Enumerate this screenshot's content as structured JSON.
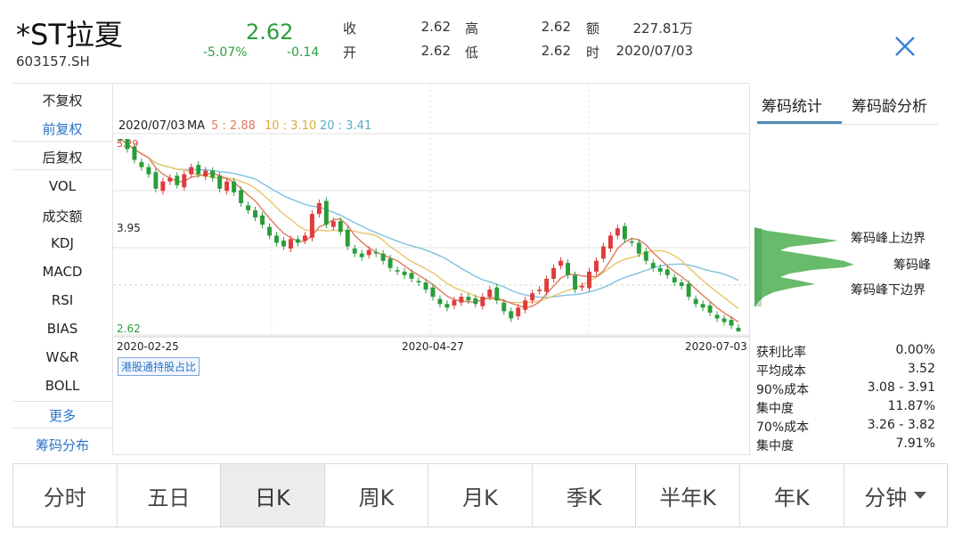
{
  "header": {
    "name": "*ST拉夏",
    "code": "603157.SH",
    "price": "2.62",
    "pct_change": "-5.07%",
    "change": "-0.14",
    "quotes": [
      {
        "label": "收",
        "value": "2.62"
      },
      {
        "label": "开",
        "value": "2.62"
      },
      {
        "label": "高",
        "value": "2.62"
      },
      {
        "label": "低",
        "value": "2.62"
      },
      {
        "label": "额",
        "value": "227.81万"
      },
      {
        "label": "时",
        "value": "2020/07/03"
      }
    ],
    "close_icon": "close-x-icon"
  },
  "left_menu": [
    {
      "label": "不复权",
      "style": "normal"
    },
    {
      "label": "前复权",
      "style": "blue"
    },
    {
      "label": "后复权",
      "style": "normal"
    },
    {
      "label": "VOL",
      "style": "normal"
    },
    {
      "label": "成交额",
      "style": "normal"
    },
    {
      "label": "KDJ",
      "style": "normal"
    },
    {
      "label": "MACD",
      "style": "normal"
    },
    {
      "label": "RSI",
      "style": "normal"
    },
    {
      "label": "BIAS",
      "style": "normal"
    },
    {
      "label": "W&R",
      "style": "normal"
    },
    {
      "label": "BOLL",
      "style": "normal"
    },
    {
      "label": "更多",
      "style": "blue"
    },
    {
      "label": "筹码分布",
      "style": "blue"
    }
  ],
  "chart": {
    "info": {
      "date": "2020/07/03",
      "ma_label": "MA",
      "ma5": "5 : 2.88",
      "ma10": "10 : 3.10",
      "ma20": "20 : 3.41"
    },
    "y_max_label": "5.29",
    "y_mid_label": "3.95",
    "y_min_label": "2.62",
    "x_labels": [
      "2020-02-25",
      "2020-04-27",
      "2020-07-03"
    ],
    "badge": "港股通持股占比",
    "colors": {
      "up": "#e03b3b",
      "down": "#2a9d3b",
      "ma5": "#e07a5f",
      "ma10": "#e8c46a",
      "ma20": "#7fc1dc"
    }
  },
  "chart_data": {
    "type": "candlestick",
    "x_start": "2020-02-25",
    "x_end": "2020-07-03",
    "ylim": [
      2.62,
      5.29
    ],
    "closes": [
      5.29,
      5.15,
      5.0,
      4.9,
      4.8,
      4.6,
      4.7,
      4.75,
      4.65,
      4.8,
      4.9,
      4.8,
      4.85,
      4.75,
      4.6,
      4.7,
      4.55,
      4.4,
      4.3,
      4.2,
      4.1,
      3.95,
      3.85,
      3.8,
      3.9,
      3.85,
      3.95,
      4.25,
      4.4,
      4.1,
      4.15,
      4.0,
      3.8,
      3.7,
      3.65,
      3.75,
      3.7,
      3.6,
      3.5,
      3.45,
      3.4,
      3.35,
      3.3,
      3.2,
      3.1,
      3.0,
      2.95,
      3.05,
      3.1,
      3.05,
      3.0,
      3.1,
      3.2,
      3.05,
      2.9,
      2.8,
      2.95,
      3.05,
      3.15,
      3.2,
      3.35,
      3.5,
      3.6,
      3.4,
      3.2,
      3.25,
      3.45,
      3.6,
      3.8,
      3.95,
      4.05,
      3.9,
      3.85,
      3.7,
      3.6,
      3.5,
      3.45,
      3.4,
      3.3,
      3.25,
      3.1,
      3.0,
      2.95,
      2.88,
      2.8,
      2.75,
      2.7,
      2.62
    ],
    "ma_values": {
      "ma5": 2.88,
      "ma10": 3.1,
      "ma20": 3.41
    }
  },
  "right_panel": {
    "tabs": [
      {
        "label": "筹码统计",
        "active": true
      },
      {
        "label": "筹码龄分析",
        "active": false
      }
    ],
    "labels": {
      "upper": "筹码峰上边界",
      "peak": "筹码峰",
      "lower": "筹码峰下边界"
    },
    "stats": [
      {
        "label": "获利比率",
        "value": "0.00%"
      },
      {
        "label": "平均成本",
        "value": "3.52"
      },
      {
        "label": "90%成本",
        "value": "3.08 - 3.91"
      },
      {
        "label": "集中度",
        "value": "11.87%"
      },
      {
        "label": "70%成本",
        "value": "3.26 - 3.82"
      },
      {
        "label": "集中度",
        "value": "7.91%"
      }
    ]
  },
  "bottom_tabs": [
    {
      "label": "分时"
    },
    {
      "label": "五日"
    },
    {
      "label": "日K",
      "active": true
    },
    {
      "label": "周K"
    },
    {
      "label": "月K"
    },
    {
      "label": "季K"
    },
    {
      "label": "半年K"
    },
    {
      "label": "年K"
    },
    {
      "label": "分钟",
      "dropdown": true
    }
  ]
}
